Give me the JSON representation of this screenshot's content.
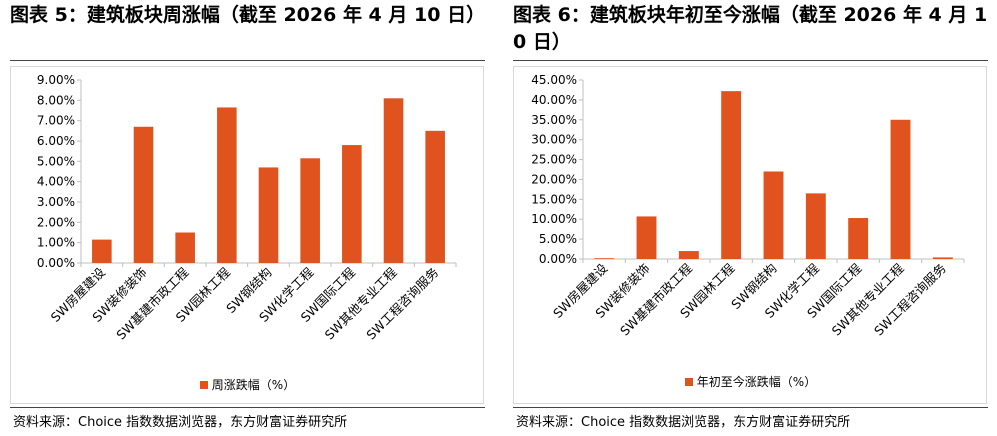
{
  "colors": {
    "bar": "#e0531f",
    "axis": "#bfbfbf",
    "border": "#d9d9d9"
  },
  "left": {
    "title": "图表 5：建筑板块周涨幅（截至 2026 年 4 月 10 日）",
    "source": "资料来源：Choice 指数数据浏览器，东方财富证券研究所",
    "chart_data": {
      "type": "bar",
      "categories": [
        "SW房屋建设",
        "SW装修装饰",
        "SW基建市政工程",
        "SW园林工程",
        "SW钢结构",
        "SW化学工程",
        "SW国际工程",
        "SW其他专业工程",
        "SW工程咨询服务"
      ],
      "series": [
        {
          "name": "周涨跌幅（%）",
          "values": [
            1.15,
            6.7,
            1.5,
            7.65,
            4.7,
            5.15,
            5.8,
            8.1,
            6.5
          ]
        }
      ],
      "ylim": [
        0,
        9
      ],
      "yticks": [
        "0.00%",
        "1.00%",
        "2.00%",
        "3.00%",
        "4.00%",
        "5.00%",
        "6.00%",
        "7.00%",
        "8.00%",
        "9.00%"
      ],
      "legend": "bottom",
      "grid": false
    }
  },
  "right": {
    "title": "图表 6：建筑板块年初至今涨幅（截至 2026 年 4 月 10 日）",
    "source": "资料来源：Choice 指数数据浏览器，东方财富证券研究所",
    "chart_data": {
      "type": "bar",
      "categories": [
        "SW房屋建设",
        "SW装修装饰",
        "SW基建市政工程",
        "SW园林工程",
        "SW钢结构",
        "SW化学工程",
        "SW国际工程",
        "SW其他专业工程",
        "SW工程咨询服务"
      ],
      "series": [
        {
          "name": "年初至今涨跌幅（%）",
          "values": [
            0.2,
            10.7,
            2.0,
            42.2,
            22.0,
            16.5,
            10.3,
            35.0,
            0.4
          ]
        }
      ],
      "ylim": [
        0,
        45
      ],
      "yticks": [
        "0.00%",
        "5.00%",
        "10.00%",
        "15.00%",
        "20.00%",
        "25.00%",
        "30.00%",
        "35.00%",
        "40.00%",
        "45.00%"
      ],
      "legend": "bottom",
      "grid": false
    }
  }
}
